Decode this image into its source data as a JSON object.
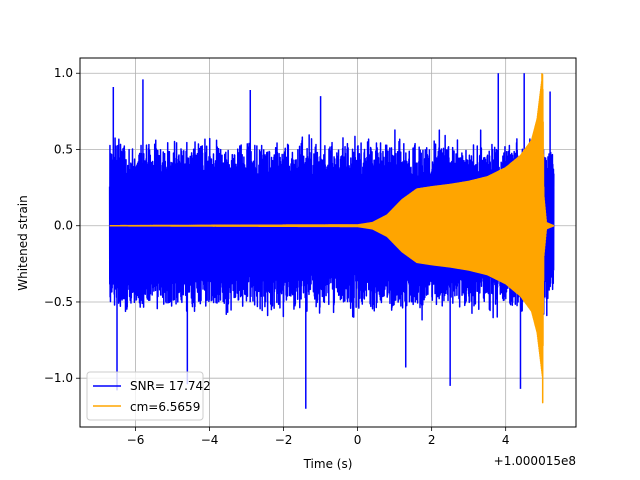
{
  "chart_data": {
    "type": "line",
    "title": "",
    "xlabel": "Time (s)",
    "ylabel": "Whitened strain",
    "x_offset_label": "+1.000015e8",
    "xlim": [
      -7.5,
      5.9
    ],
    "ylim": [
      -1.32,
      1.1
    ],
    "xticks": [
      -6,
      -4,
      -2,
      0,
      2,
      4
    ],
    "xtick_labels": [
      "−6",
      "−4",
      "−2",
      "0",
      "2",
      "4"
    ],
    "yticks": [
      -1.0,
      -0.5,
      0.0,
      0.5,
      1.0
    ],
    "ytick_labels": [
      "−1.0",
      "−0.5",
      "0.0",
      "0.5",
      "1.0"
    ],
    "grid": true,
    "legend_position": "lower-left",
    "series": [
      {
        "name": "SNR= 17.742",
        "color": "#0000ff",
        "kind": "noise",
        "x_range": [
          -6.7,
          5.3
        ],
        "typical_amplitude": 0.5,
        "min": -1.2,
        "max": 1.0,
        "spikes": [
          {
            "x": -6.6,
            "y": 0.91
          },
          {
            "x": -6.5,
            "y": -1.08
          },
          {
            "x": -5.8,
            "y": 0.96
          },
          {
            "x": -4.6,
            "y": -1.04
          },
          {
            "x": -2.9,
            "y": 0.89
          },
          {
            "x": -1.4,
            "y": -1.2
          },
          {
            "x": -1.0,
            "y": 0.85
          },
          {
            "x": 1.3,
            "y": -0.93
          },
          {
            "x": 2.5,
            "y": -1.05
          },
          {
            "x": 3.8,
            "y": 1.0
          },
          {
            "x": 4.4,
            "y": -1.07
          },
          {
            "x": 4.5,
            "y": 1.0
          },
          {
            "x": 5.2,
            "y": 0.88
          }
        ]
      },
      {
        "name": "cm=6.5659",
        "color": "#ffa500",
        "kind": "chirp",
        "envelope": [
          {
            "x": -6.7,
            "y": 0.0
          },
          {
            "x": 0.0,
            "y": 0.005
          },
          {
            "x": 0.4,
            "y": 0.02
          },
          {
            "x": 0.8,
            "y": 0.07
          },
          {
            "x": 1.2,
            "y": 0.17
          },
          {
            "x": 1.6,
            "y": 0.24
          },
          {
            "x": 2.0,
            "y": 0.255
          },
          {
            "x": 2.5,
            "y": 0.27
          },
          {
            "x": 3.0,
            "y": 0.29
          },
          {
            "x": 3.5,
            "y": 0.32
          },
          {
            "x": 4.0,
            "y": 0.38
          },
          {
            "x": 4.4,
            "y": 0.46
          },
          {
            "x": 4.7,
            "y": 0.56
          },
          {
            "x": 4.85,
            "y": 0.7
          },
          {
            "x": 4.95,
            "y": 0.9
          },
          {
            "x": 5.0,
            "y": 1.0
          },
          {
            "x": 5.03,
            "y": 0.2
          },
          {
            "x": 5.1,
            "y": 0.02
          },
          {
            "x": 5.3,
            "y": 0.0
          }
        ],
        "min": -1.16,
        "max": 1.0
      }
    ]
  }
}
